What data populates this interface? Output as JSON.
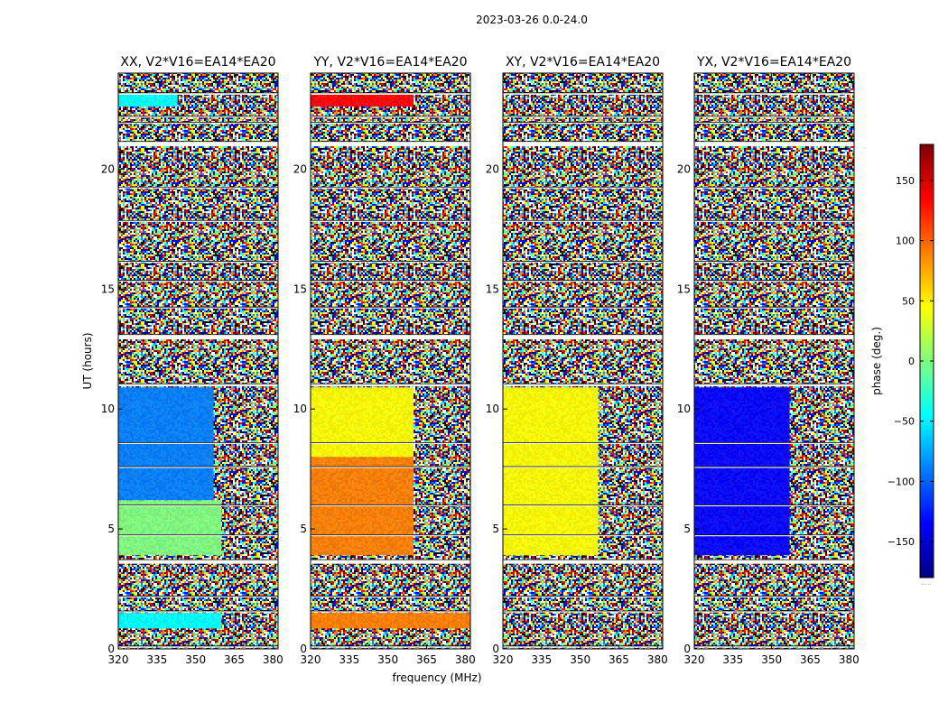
{
  "figure": {
    "suptitle": "2023-03-26 0.0-24.0"
  },
  "chart_data": {
    "type": "heatmap",
    "suptitle": "2023-03-26 0.0-24.0",
    "xlabel": "frequency (MHz)",
    "ylabel": "UT (hours)",
    "xlim": [
      320,
      382
    ],
    "ylim": [
      0,
      24
    ],
    "xticks": [
      320,
      335,
      350,
      365,
      380
    ],
    "yticks": [
      0,
      5,
      10,
      15,
      20
    ],
    "colorbar": {
      "label": "phase (deg.)",
      "range": [
        -180,
        180
      ],
      "ticks": [
        150,
        100,
        50,
        0,
        -50,
        -100,
        -150
      ],
      "tick_labels": [
        "150",
        "100",
        "50",
        "0",
        "−50",
        "−100",
        "−150"
      ],
      "colormap": "jet",
      "colors": [
        "#00007f",
        "#0000ff",
        "#007fff",
        "#00ffff",
        "#7fff7f",
        "#ffff00",
        "#ff7f00",
        "#ff0000",
        "#7f0000"
      ],
      "footnote": "....."
    },
    "panels": [
      {
        "title": "XX, V2*V16=EA14*EA20",
        "regions": [
          {
            "t0": 0.85,
            "t1": 1.5,
            "f0": 320,
            "f1": 360,
            "phase": -25
          },
          {
            "t0": 22.6,
            "t1": 23.1,
            "f0": 320,
            "f1": 343,
            "phase": -25
          },
          {
            "t0": 3.9,
            "t1": 6.2,
            "f0": 320,
            "f1": 360,
            "phase": -20
          },
          {
            "t0": 6.2,
            "t1": 10.9,
            "f0": 320,
            "f1": 357,
            "phase": -90
          }
        ]
      },
      {
        "title": "YY, V2*V16=EA14*EA20",
        "regions": [
          {
            "t0": 0.85,
            "t1": 1.5,
            "f0": 320,
            "f1": 382,
            "phase": 110
          },
          {
            "t0": 22.6,
            "t1": 23.1,
            "f0": 320,
            "f1": 360,
            "phase": 130
          },
          {
            "t0": 3.9,
            "t1": 6.2,
            "f0": 320,
            "f1": 360,
            "phase": 110
          },
          {
            "t0": 6.2,
            "t1": 8.0,
            "f0": 320,
            "f1": 360,
            "phase": 80
          },
          {
            "t0": 8.0,
            "t1": 10.9,
            "f0": 320,
            "f1": 360,
            "phase": 45
          }
        ]
      },
      {
        "title": "XY, V2*V16=EA14*EA20",
        "regions": [
          {
            "t0": 3.9,
            "t1": 10.9,
            "f0": 320,
            "f1": 357,
            "phase": 60
          }
        ]
      },
      {
        "title": "YX, V2*V16=EA14*EA20",
        "regions": [
          {
            "t0": 3.9,
            "t1": 10.9,
            "f0": 320,
            "f1": 357,
            "phase": -140
          }
        ]
      }
    ],
    "flagged_time_gaps": [
      [
        0.05,
        0.12
      ],
      [
        3.55,
        3.72
      ],
      [
        10.95,
        11.05
      ],
      [
        12.9,
        13.1
      ],
      [
        20.95,
        21.15
      ],
      [
        1.52,
        1.58
      ],
      [
        2.15,
        2.2
      ],
      [
        4.7,
        4.75
      ],
      [
        5.95,
        6.0
      ],
      [
        7.55,
        7.6
      ],
      [
        8.55,
        8.6
      ],
      [
        14.2,
        14.25
      ],
      [
        15.3,
        15.36
      ],
      [
        16.1,
        16.16
      ],
      [
        17.8,
        17.86
      ],
      [
        19.2,
        19.25
      ],
      [
        21.9,
        21.95
      ],
      [
        22.15,
        22.2
      ],
      [
        23.1,
        23.18
      ]
    ]
  }
}
